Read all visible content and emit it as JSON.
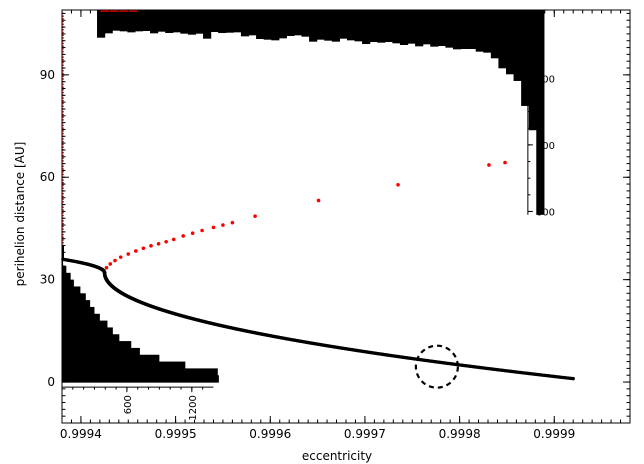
{
  "chart_data": {
    "type": "scatter",
    "title": "",
    "xlabel": "eccentricity",
    "ylabel": "perihelion distance [AU]",
    "xlim": [
      0.99938,
      0.99998
    ],
    "ylim": [
      -12,
      109
    ],
    "x_ticks": [
      0.9994,
      0.9995,
      0.9996,
      0.9997,
      0.9998,
      0.9999
    ],
    "x_tick_labels": [
      "0.9994",
      "0.9995",
      "0.9996",
      "0.9997",
      "0.9998",
      "0.9999"
    ],
    "y_ticks": [
      0,
      30,
      60,
      90
    ],
    "y_tick_labels": [
      "0",
      "30",
      "60",
      "90"
    ],
    "top_hist_axis": {
      "ticks": [
        200,
        400,
        600
      ],
      "tick_labels": [
        "200",
        "400",
        "600"
      ],
      "max": 610
    },
    "left_hist_axis": {
      "ticks": [
        600,
        1200
      ],
      "tick_labels": [
        "600",
        "1200"
      ],
      "max": 1400
    },
    "colors": {
      "black_series": "#000000",
      "red_series": "#ff0000",
      "histogram": "#000000"
    },
    "series": [
      {
        "color": "#000000",
        "curve": "parabolic",
        "vertex": {
          "x": 0.999425,
          "y": 32
        },
        "end": {
          "x": 0.99992,
          "y": 1
        },
        "start": {
          "x": 0.99938,
          "y": 36
        }
      },
      {
        "color": "#ff0000",
        "points": [
          {
            "x": 0.999427,
            "y": 33.5
          },
          {
            "x": 0.999431,
            "y": 34.6
          },
          {
            "x": 0.999436,
            "y": 35.6
          },
          {
            "x": 0.999442,
            "y": 36.6
          },
          {
            "x": 0.99945,
            "y": 37.5
          },
          {
            "x": 0.999458,
            "y": 38.4
          },
          {
            "x": 0.999466,
            "y": 39.2
          },
          {
            "x": 0.999474,
            "y": 39.9
          },
          {
            "x": 0.999482,
            "y": 40.5
          },
          {
            "x": 0.99949,
            "y": 41.1
          },
          {
            "x": 0.999498,
            "y": 41.8
          },
          {
            "x": 0.999508,
            "y": 42.8
          },
          {
            "x": 0.999518,
            "y": 43.6
          },
          {
            "x": 0.999528,
            "y": 44.4
          },
          {
            "x": 0.99954,
            "y": 45.3
          },
          {
            "x": 0.99955,
            "y": 46.0
          },
          {
            "x": 0.99956,
            "y": 46.7
          },
          {
            "x": 0.999584,
            "y": 48.6
          },
          {
            "x": 0.999651,
            "y": 53.2
          },
          {
            "x": 0.999735,
            "y": 57.8
          },
          {
            "x": 0.999831,
            "y": 63.6
          },
          {
            "x": 0.999848,
            "y": 64.3
          }
        ]
      }
    ],
    "annotations": [
      {
        "shape": "dashed-circle",
        "x": 0.999776,
        "y": 4.5
      }
    ],
    "top_histogram": {
      "bin_left_edges": [
        0.999417,
        0.999425,
        0.999433,
        0.999441,
        0.999449,
        0.999457,
        0.999465,
        0.999473,
        0.999481,
        0.999489,
        0.999497,
        0.999505,
        0.999513,
        0.999521,
        0.999529,
        0.999537,
        0.999545,
        0.999553,
        0.999561,
        0.999569,
        0.999577,
        0.999585,
        0.999593,
        0.999601,
        0.999609,
        0.999617,
        0.999625,
        0.999633,
        0.999641,
        0.999649,
        0.999657,
        0.999665,
        0.999673,
        0.999681,
        0.999689,
        0.999697,
        0.999705,
        0.999713,
        0.999721,
        0.999729,
        0.999737,
        0.999745,
        0.999753,
        0.999761,
        0.999769,
        0.999777,
        0.999785,
        0.999793,
        0.999801,
        0.999809,
        0.999817,
        0.999825,
        0.999833,
        0.999841,
        0.999849,
        0.999857,
        0.999865,
        0.999873
      ],
      "bin_width": 8e-06,
      "counts": [
        78,
        65,
        57,
        59,
        62,
        59,
        58,
        65,
        60,
        64,
        62,
        66,
        69,
        66,
        81,
        61,
        64,
        63,
        62,
        74,
        71,
        82,
        84,
        86,
        80,
        73,
        71,
        75,
        90,
        84,
        87,
        90,
        81,
        86,
        89,
        97,
        91,
        93,
        91,
        95,
        100,
        96,
        104,
        98,
        105,
        103,
        108,
        113,
        112,
        112,
        120,
        123,
        140,
        170,
        188,
        208,
        283,
        356
      ],
      "truncated_bin": {
        "x_left": 0.999881,
        "x_right": 0.999889,
        "count_min": 585
      }
    },
    "left_histogram": {
      "bin_bottom_edges": [
        0,
        2,
        4,
        6,
        8,
        10,
        12,
        14,
        16,
        18,
        20,
        22,
        24,
        26,
        28,
        30,
        32,
        34
      ],
      "bin_height": 2,
      "counts": [
        1450,
        1440,
        1140,
        900,
        720,
        640,
        530,
        470,
        420,
        350,
        300,
        260,
        220,
        170,
        110,
        80,
        40,
        10
      ]
    }
  }
}
